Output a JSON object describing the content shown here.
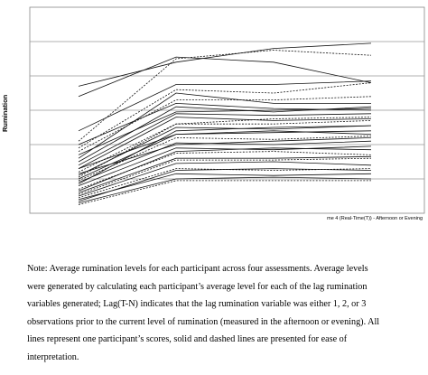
{
  "chart_data": {
    "type": "line",
    "ylabel": "Rumination",
    "xlabel": "me 4 (Real-Time(T)) - Afternoon or Evening",
    "x": [
      1,
      2,
      3,
      4
    ],
    "ylim": [
      0,
      6
    ],
    "grid": true,
    "legend": "none",
    "series": [
      {
        "style": "solid",
        "values": [
          3.4,
          4.55,
          4.4,
          3.8
        ]
      },
      {
        "style": "dashed",
        "values": [
          2.1,
          4.5,
          4.75,
          4.6
        ]
      },
      {
        "style": "solid",
        "values": [
          3.7,
          4.4,
          4.8,
          4.95
        ]
      },
      {
        "style": "dashed",
        "values": [
          1.9,
          3.6,
          3.5,
          3.8
        ]
      },
      {
        "style": "solid",
        "values": [
          2.4,
          3.75,
          3.75,
          3.85
        ]
      },
      {
        "style": "solid",
        "values": [
          2.0,
          3.2,
          3.05,
          3.0
        ]
      },
      {
        "style": "solid",
        "values": [
          1.6,
          3.5,
          3.2,
          3.2
        ]
      },
      {
        "style": "dashed",
        "values": [
          1.8,
          3.3,
          3.3,
          3.4
        ]
      },
      {
        "style": "solid",
        "values": [
          1.5,
          3.1,
          2.95,
          3.1
        ]
      },
      {
        "style": "solid",
        "values": [
          1.4,
          2.9,
          2.85,
          2.9
        ]
      },
      {
        "style": "solid",
        "values": [
          1.3,
          2.8,
          2.7,
          2.75
        ]
      },
      {
        "style": "dashed",
        "values": [
          1.2,
          2.6,
          2.75,
          2.8
        ]
      },
      {
        "style": "solid",
        "values": [
          1.1,
          2.5,
          2.45,
          2.55
        ]
      },
      {
        "style": "solid",
        "values": [
          1.0,
          2.3,
          2.35,
          2.4
        ]
      },
      {
        "style": "dashed",
        "values": [
          0.95,
          2.2,
          2.15,
          2.25
        ]
      },
      {
        "style": "solid",
        "values": [
          0.9,
          2.05,
          2.0,
          2.1
        ]
      },
      {
        "style": "solid",
        "values": [
          0.8,
          1.9,
          1.85,
          1.95
        ]
      },
      {
        "style": "dashed",
        "values": [
          0.7,
          1.75,
          1.8,
          1.7
        ]
      },
      {
        "style": "solid",
        "values": [
          0.6,
          1.6,
          1.6,
          1.65
        ]
      },
      {
        "style": "solid",
        "values": [
          0.5,
          1.45,
          1.5,
          1.4
        ]
      },
      {
        "style": "dashed",
        "values": [
          0.45,
          1.3,
          1.25,
          1.3
        ]
      },
      {
        "style": "solid",
        "values": [
          0.4,
          1.15,
          1.1,
          1.15
        ]
      },
      {
        "style": "solid",
        "values": [
          0.3,
          1.0,
          1.05,
          1.0
        ]
      },
      {
        "style": "dashed",
        "values": [
          0.25,
          0.95,
          0.95,
          0.95
        ]
      },
      {
        "style": "solid",
        "values": [
          1.3,
          2.3,
          2.4,
          2.3
        ]
      },
      {
        "style": "solid",
        "values": [
          1.15,
          2.0,
          2.1,
          2.2
        ]
      },
      {
        "style": "dashed",
        "values": [
          1.05,
          2.6,
          2.6,
          2.7
        ]
      },
      {
        "style": "solid",
        "values": [
          0.85,
          2.4,
          2.5,
          2.55
        ]
      },
      {
        "style": "solid",
        "values": [
          0.65,
          1.8,
          1.9,
          1.85
        ]
      },
      {
        "style": "dashed",
        "values": [
          0.55,
          1.55,
          1.55,
          1.6
        ]
      },
      {
        "style": "solid",
        "values": [
          0.35,
          1.25,
          1.3,
          1.25
        ]
      },
      {
        "style": "solid",
        "values": [
          1.7,
          2.95,
          3.0,
          3.05
        ]
      }
    ]
  },
  "note": {
    "lines": [
      "Note: Average rumination levels for each participant across four assessments. Average levels",
      "were generated by calculating each participant’s average level for each of the lag rumination",
      "variables generated; Lag(T-N) indicates that the lag rumination variable was either 1, 2, or 3",
      "observations prior to the current level of rumination (measured in the afternoon or evening).  All",
      "lines represent one participant’s scores, solid and dashed lines are presented for ease of",
      "interpretation."
    ]
  }
}
